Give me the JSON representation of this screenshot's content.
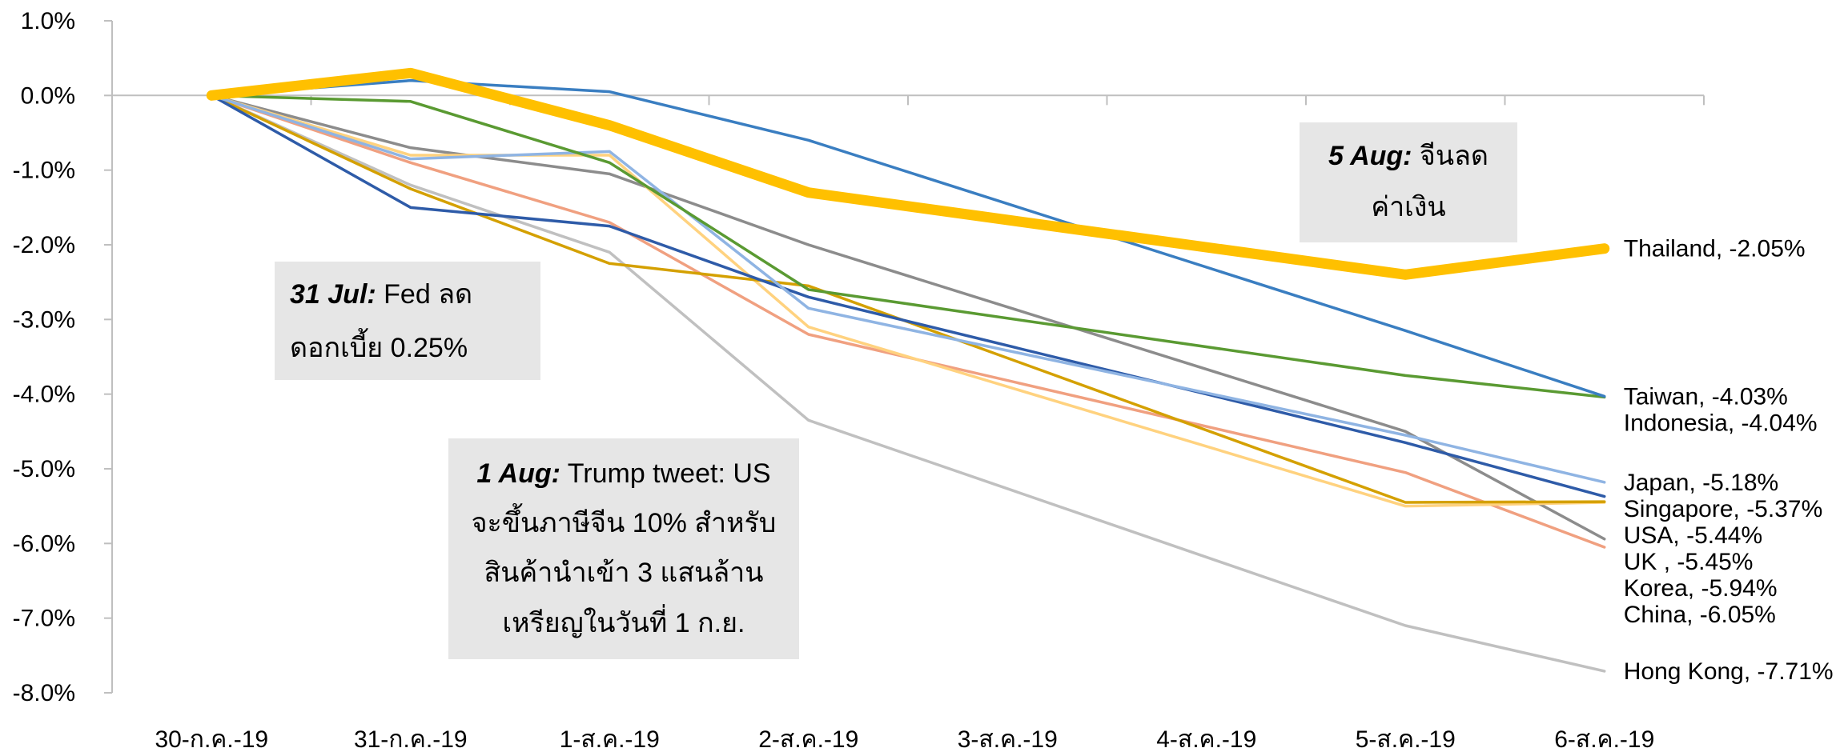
{
  "chart_data": {
    "type": "line",
    "x": [
      "30-ก.ค.-19",
      "31-ก.ค.-19",
      "1-ส.ค.-19",
      "2-ส.ค.-19",
      "3-ส.ค.-19",
      "4-ส.ค.-19",
      "5-ส.ค.-19",
      "6-ส.ค.-19"
    ],
    "ylim": [
      -8.0,
      1.0
    ],
    "yticks": [
      "1.0%",
      "0.0%",
      "-1.0%",
      "-2.0%",
      "-3.0%",
      "-4.0%",
      "-5.0%",
      "-6.0%",
      "-7.0%",
      "-8.0%"
    ],
    "grid": false,
    "series": [
      {
        "name": "Hong Kong",
        "end_label": "Hong Kong, -7.71%",
        "color": "#c0c0c0",
        "values": [
          0.0,
          -1.2,
          -2.1,
          -4.35,
          null,
          null,
          -7.1,
          -7.71
        ]
      },
      {
        "name": "China",
        "end_label": "China, -6.05%",
        "color": "#f0a080",
        "values": [
          0.0,
          -0.9,
          -1.7,
          -3.2,
          null,
          null,
          -5.05,
          -6.05
        ]
      },
      {
        "name": "Korea",
        "end_label": "Korea, -5.94%",
        "color": "#8c8c8c",
        "values": [
          0.0,
          -0.7,
          -1.05,
          -2.0,
          null,
          null,
          -4.5,
          -5.94
        ]
      },
      {
        "name": "UK",
        "end_label": "UK , -5.45%",
        "color": "#ffd27f",
        "values": [
          0.0,
          -0.8,
          -0.8,
          -3.1,
          null,
          null,
          -5.5,
          -5.45
        ]
      },
      {
        "name": "USA",
        "end_label": "USA, -5.44%",
        "color": "#d4a000",
        "values": [
          0.0,
          -1.25,
          -2.25,
          -2.55,
          null,
          null,
          -5.45,
          -5.44
        ]
      },
      {
        "name": "Singapore",
        "end_label": "Singapore, -5.37%",
        "color": "#2e5ba8",
        "values": [
          0.0,
          -1.5,
          -1.75,
          -2.7,
          null,
          null,
          -4.65,
          -5.37
        ]
      },
      {
        "name": "Japan",
        "end_label": "Japan, -5.18%",
        "color": "#8fb4e3",
        "values": [
          0.0,
          -0.85,
          -0.75,
          -2.85,
          null,
          null,
          -4.55,
          -5.18
        ]
      },
      {
        "name": "Indonesia",
        "end_label": "Indonesia, -4.04%",
        "color": "#5a9a32",
        "values": [
          0.0,
          -0.08,
          -0.9,
          -2.6,
          null,
          null,
          -3.75,
          -4.04
        ]
      },
      {
        "name": "Taiwan",
        "end_label": "Taiwan, -4.03%",
        "color": "#3a7ec1",
        "values": [
          0.0,
          0.2,
          0.05,
          -0.6,
          null,
          null,
          -3.15,
          -4.03
        ]
      },
      {
        "name": "Thailand",
        "end_label": "Thailand, -2.05%",
        "color": "#ffc000",
        "values": [
          0.0,
          0.3,
          -0.4,
          -1.3,
          null,
          null,
          -2.4,
          -2.05
        ]
      }
    ],
    "annotations": [
      {
        "bold": "31 Jul:",
        "lines": [
          " Fed ลด",
          "ดอกเบี้ย 0.25%"
        ]
      },
      {
        "bold": "1 Aug:",
        "lines": [
          " Trump tweet: US",
          "จะขึ้นภาษีจีน 10% สำหรับ",
          "สินค้านำเข้า 3 แสนล้าน",
          "เหรียญในวันที่ 1 ก.ย."
        ]
      },
      {
        "bold": "5 Aug:",
        "lines": [
          " จีนลด",
          "ค่าเงิน"
        ]
      }
    ]
  }
}
